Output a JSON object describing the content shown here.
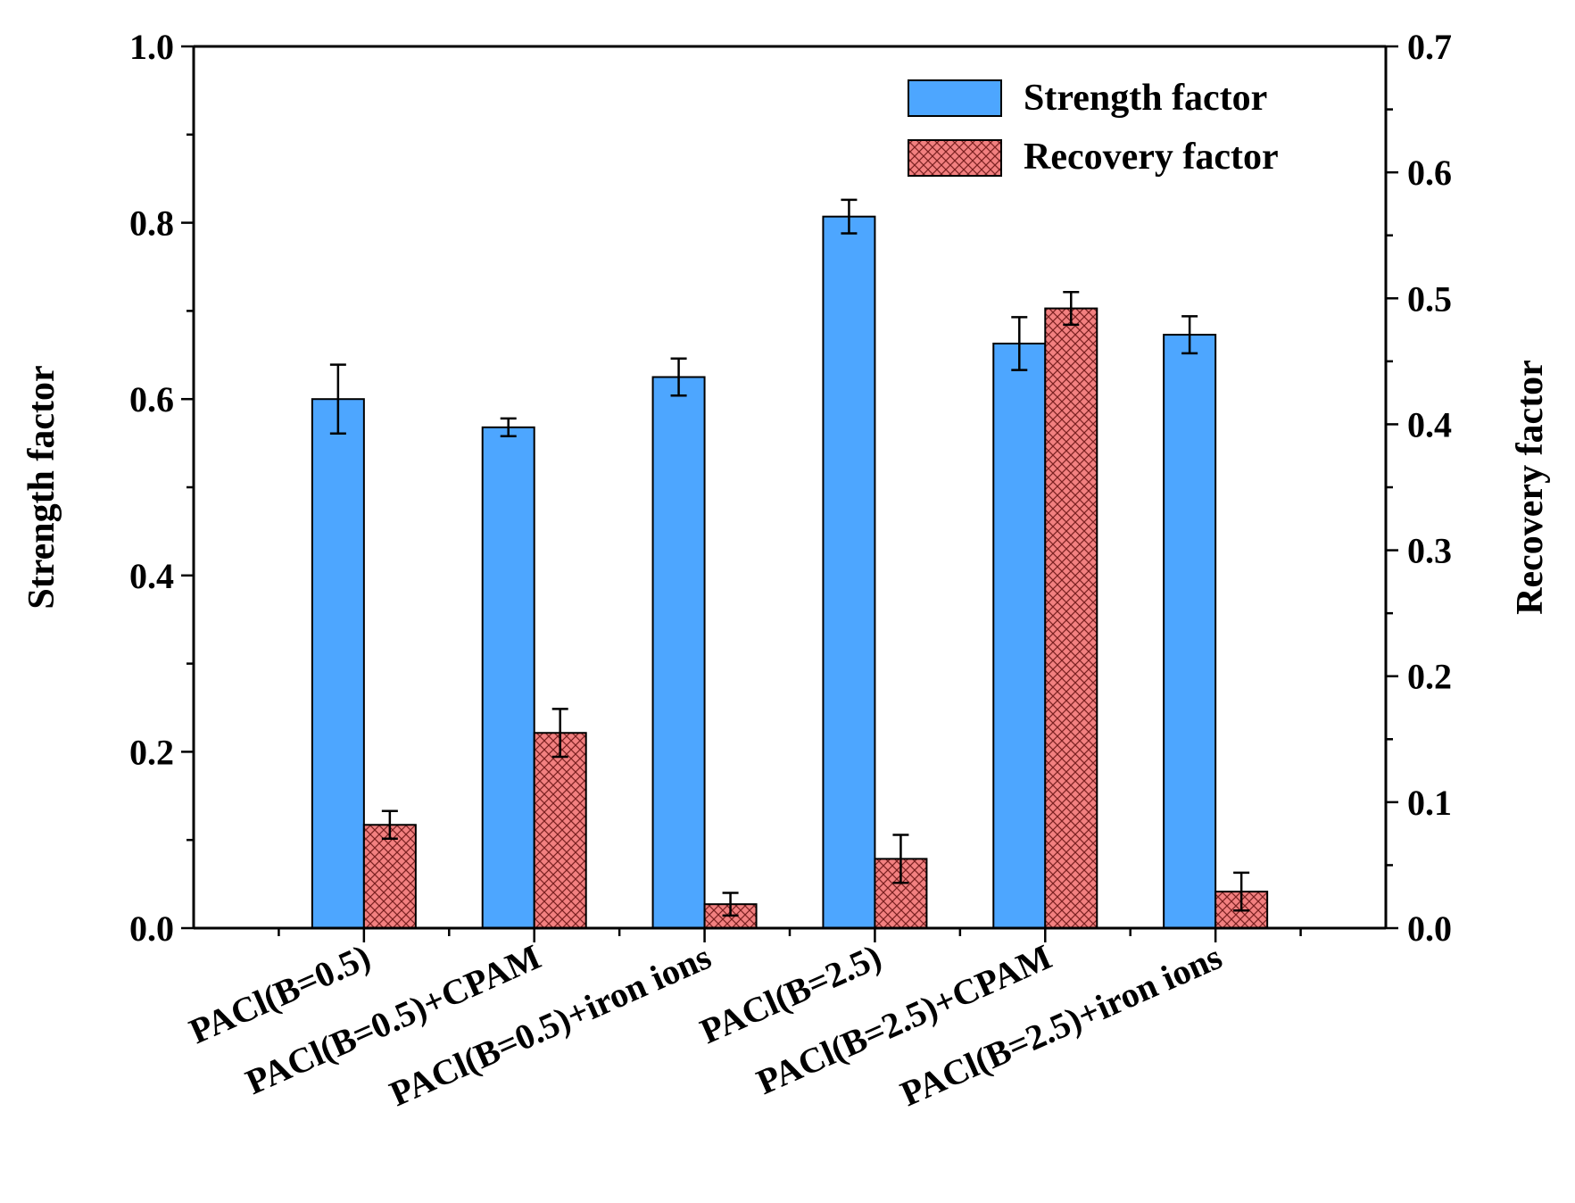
{
  "chart_data": {
    "type": "bar",
    "categories": [
      "PACl(B=0.5)",
      "PACl(B=0.5)+CPAM",
      "PACl(B=0.5)+iron ions",
      "PACl(B=2.5)",
      "PACl(B=2.5)+CPAM",
      "PACl(B=2.5)+iron ions"
    ],
    "series": [
      {
        "name": "Strength factor",
        "axis": "left",
        "color": "#4da6ff",
        "pattern": "solid",
        "values": [
          0.6,
          0.568,
          0.625,
          0.807,
          0.663,
          0.673
        ],
        "errors": [
          0.039,
          0.01,
          0.021,
          0.019,
          0.03,
          0.021
        ]
      },
      {
        "name": "Recovery factor",
        "axis": "right",
        "color": "#f28080",
        "pattern": "crosshatch",
        "values": [
          0.082,
          0.155,
          0.019,
          0.055,
          0.492,
          0.029
        ],
        "errors": [
          0.011,
          0.019,
          0.009,
          0.019,
          0.013,
          0.015
        ]
      }
    ],
    "ylabel": "Strength factor",
    "y2label": "Recovery factor",
    "ylim": [
      0,
      1.0
    ],
    "y2lim": [
      0,
      0.7
    ],
    "yticks": [
      "0.0",
      "0.2",
      "0.4",
      "0.6",
      "0.8",
      "1.0"
    ],
    "y2ticks": [
      "0.0",
      "0.1",
      "0.2",
      "0.3",
      "0.4",
      "0.5",
      "0.6",
      "0.7"
    ],
    "legend_position": "top-right",
    "grid": false
  }
}
